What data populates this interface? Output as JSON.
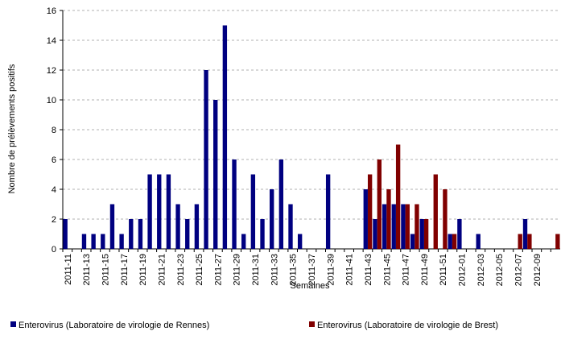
{
  "chart_data": {
    "type": "bar",
    "y_label": "Nombre de prélèvements positifs",
    "x_label": "Semaines",
    "categories": [
      "2011-11",
      null,
      "2011-13",
      null,
      "2011-15",
      null,
      "2011-17",
      null,
      "2011-19",
      null,
      "2011-21",
      null,
      "2011-23",
      null,
      "2011-25",
      null,
      "2011-27",
      null,
      "2011-29",
      null,
      "2011-31",
      null,
      "2011-33",
      null,
      "2011-35",
      null,
      "2011-37",
      null,
      "2011-39",
      null,
      "2011-41",
      null,
      "2011-43",
      null,
      "2011-45",
      null,
      "2011-47",
      null,
      "2011-49",
      null,
      "2011-51",
      null,
      "2012-01",
      null,
      "2012-03",
      null,
      "2012-05",
      null,
      "2012-07",
      null,
      "2012-09",
      null,
      null
    ],
    "series": [
      {
        "name": "Enterovirus (Laboratoire de virologie de Rennes)",
        "color": "#000080",
        "values": [
          2,
          0,
          1,
          1,
          1,
          3,
          1,
          2,
          2,
          5,
          5,
          5,
          3,
          2,
          3,
          12,
          10,
          15,
          6,
          1,
          5,
          2,
          4,
          6,
          3,
          1,
          0,
          0,
          5,
          0,
          0,
          0,
          4,
          2,
          3,
          3,
          3,
          1,
          2,
          0,
          0,
          1,
          2,
          0,
          1,
          0,
          0,
          0,
          0,
          2,
          0,
          0,
          0
        ]
      },
      {
        "name": "Enterovirus (Laboratoire de virologie de Brest)",
        "color": "#800000",
        "values": [
          0,
          0,
          0,
          0,
          0,
          0,
          0,
          0,
          0,
          0,
          0,
          0,
          0,
          0,
          0,
          0,
          0,
          0,
          0,
          0,
          0,
          0,
          0,
          0,
          0,
          0,
          0,
          0,
          0,
          0,
          0,
          0,
          5,
          6,
          4,
          7,
          3,
          3,
          2,
          5,
          4,
          1,
          0,
          0,
          0,
          0,
          0,
          0,
          1,
          1,
          0,
          0,
          1
        ]
      }
    ],
    "ylim": [
      0,
      16
    ],
    "yticks": [
      0,
      2,
      4,
      6,
      8,
      10,
      12,
      14,
      16
    ],
    "grid": true
  }
}
